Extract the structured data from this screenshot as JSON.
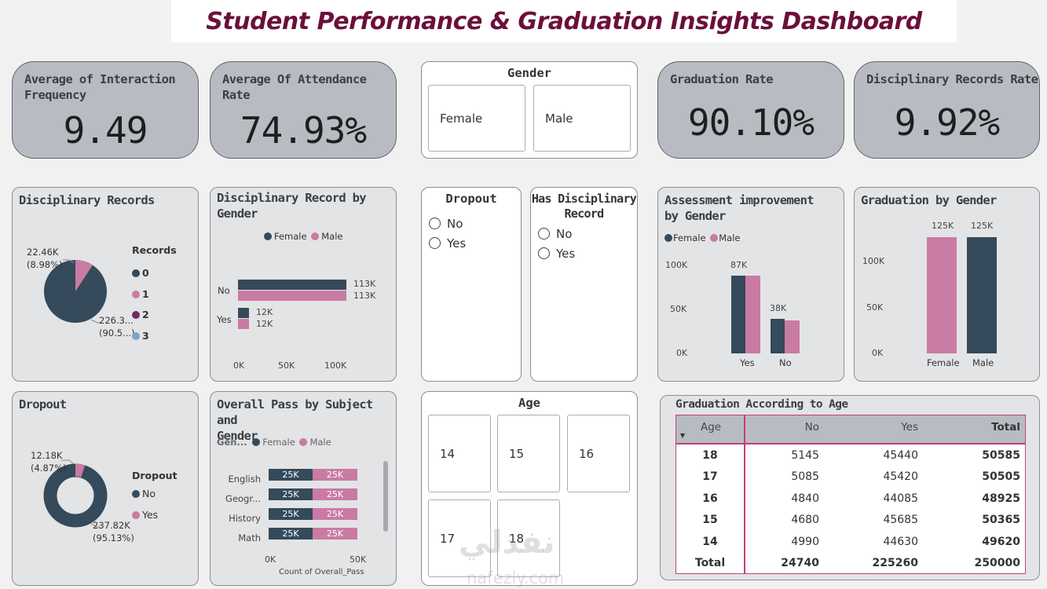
{
  "title": "Student Performance & Graduation Insights Dashboard",
  "kpis": {
    "interaction": {
      "label1": "Average of Interaction",
      "label2": "Frequency",
      "value": "9.49"
    },
    "attendance": {
      "label1": "Average Of Attendance",
      "label2": "Rate",
      "value": "74.93%"
    },
    "graduation": {
      "label": "Graduation Rate",
      "value": "90.10%"
    },
    "disciplinary": {
      "label": "Disciplinary Records Rate",
      "value": "9.92%"
    }
  },
  "gender_slicer": {
    "title": "Gender",
    "options": [
      "Female",
      "Male"
    ]
  },
  "dropout_slicer": {
    "title": "Dropout",
    "options": [
      "No",
      "Yes"
    ]
  },
  "has_disc_slicer": {
    "title1": "Has Disciplinary",
    "title2": "Record",
    "options": [
      "No",
      "Yes"
    ]
  },
  "age_slicer": {
    "title": "Age",
    "options": [
      "14",
      "15",
      "16",
      "17",
      "18"
    ]
  },
  "disc_records_pie": {
    "title": "Disciplinary Records",
    "legend_title": "Records",
    "legend": [
      "0",
      "1",
      "2",
      "3"
    ],
    "label_small": "22.46K",
    "label_small_pct": "(8.98%)",
    "label_big": "226.3...",
    "label_big_pct": "(90.5...)",
    "colors": {
      "c0": "#354a5a",
      "c1": "#c97ba3",
      "c2": "#6b2f5e",
      "c3": "#7aa4c8"
    }
  },
  "disc_by_gender": {
    "title1": "Disciplinary Record by",
    "title2": "Gender",
    "legend": [
      "Female",
      "Male"
    ],
    "categories": [
      "No",
      "Yes"
    ],
    "labels": {
      "no_f": "113K",
      "no_m": "113K",
      "yes_f": "12K",
      "yes_m": "12K"
    },
    "ticks": [
      "0K",
      "50K",
      "100K"
    ]
  },
  "dropout_donut": {
    "title": "Dropout",
    "legend_title": "Dropout",
    "legend": [
      "No",
      "Yes"
    ],
    "label_small": "12.18K",
    "label_small_pct": "(4.87%)",
    "label_big": "237.82K",
    "label_big_pct": "(95.13%)"
  },
  "overall_pass": {
    "title1": "Overall Pass by Subject and",
    "title2": "Gender",
    "legend_prefix": "Gen...",
    "legend": [
      "Female",
      "Male"
    ],
    "subjects": [
      "English",
      "Geogr...",
      "History",
      "Math"
    ],
    "bar_label": "25K",
    "ticks": [
      "0K",
      "50K"
    ],
    "xlabel": "Count of Overall_Pass"
  },
  "assessment": {
    "title1": "Assessment improvement",
    "title2": "by Gender",
    "legend": [
      "Female",
      "Male"
    ],
    "yticks": [
      "100K",
      "50K",
      "0K"
    ],
    "categories": [
      "Yes",
      "No"
    ],
    "labels": [
      "87K",
      "38K"
    ]
  },
  "grad_by_gender": {
    "title": "Graduation by Gender",
    "yticks": [
      "100K",
      "50K",
      "0K"
    ],
    "categories": [
      "Female",
      "Male"
    ],
    "labels": [
      "125K",
      "125K"
    ]
  },
  "grad_table": {
    "title": "Graduation According to Age",
    "headers": [
      "Age",
      "No",
      "Yes",
      "Total"
    ],
    "rows": [
      [
        "18",
        "5145",
        "45440",
        "50585"
      ],
      [
        "17",
        "5085",
        "45420",
        "50505"
      ],
      [
        "16",
        "4840",
        "44085",
        "48925"
      ],
      [
        "15",
        "4680",
        "45685",
        "50365"
      ],
      [
        "14",
        "4990",
        "44630",
        "49620"
      ]
    ],
    "total": [
      "Total",
      "24740",
      "225260",
      "250000"
    ]
  },
  "watermark": {
    "arabic": "نفذلي",
    "latin": "nafezly.com"
  },
  "chart_data": [
    {
      "type": "pie",
      "title": "Disciplinary Records",
      "categories": [
        "0",
        "1"
      ],
      "values": [
        226300,
        22460
      ]
    },
    {
      "type": "bar",
      "title": "Disciplinary Record by Gender",
      "categories": [
        "No",
        "Yes"
      ],
      "series": [
        {
          "name": "Female",
          "values": [
            113000,
            12000
          ]
        },
        {
          "name": "Male",
          "values": [
            113000,
            12000
          ]
        }
      ],
      "xlim": [
        0,
        120000
      ]
    },
    {
      "type": "pie",
      "title": "Dropout",
      "categories": [
        "No",
        "Yes"
      ],
      "values": [
        237820,
        12180
      ]
    },
    {
      "type": "bar",
      "title": "Overall Pass by Subject and Gender",
      "categories": [
        "English",
        "Geogr...",
        "History",
        "Math"
      ],
      "series": [
        {
          "name": "Female",
          "values": [
            25000,
            25000,
            25000,
            25000
          ]
        },
        {
          "name": "Male",
          "values": [
            25000,
            25000,
            25000,
            25000
          ]
        }
      ],
      "xlim": [
        0,
        50000
      ],
      "xlabel": "Count of Overall_Pass"
    },
    {
      "type": "bar",
      "title": "Assessment improvement by Gender",
      "categories": [
        "Yes",
        "No"
      ],
      "series": [
        {
          "name": "Female",
          "values": [
            87000,
            38000
          ]
        },
        {
          "name": "Male",
          "values": [
            87000,
            38000
          ]
        }
      ],
      "ylim": [
        0,
        100000
      ]
    },
    {
      "type": "bar",
      "title": "Graduation by Gender",
      "categories": [
        "Female",
        "Male"
      ],
      "values": [
        125000,
        125000
      ],
      "ylim": [
        0,
        125000
      ]
    }
  ]
}
